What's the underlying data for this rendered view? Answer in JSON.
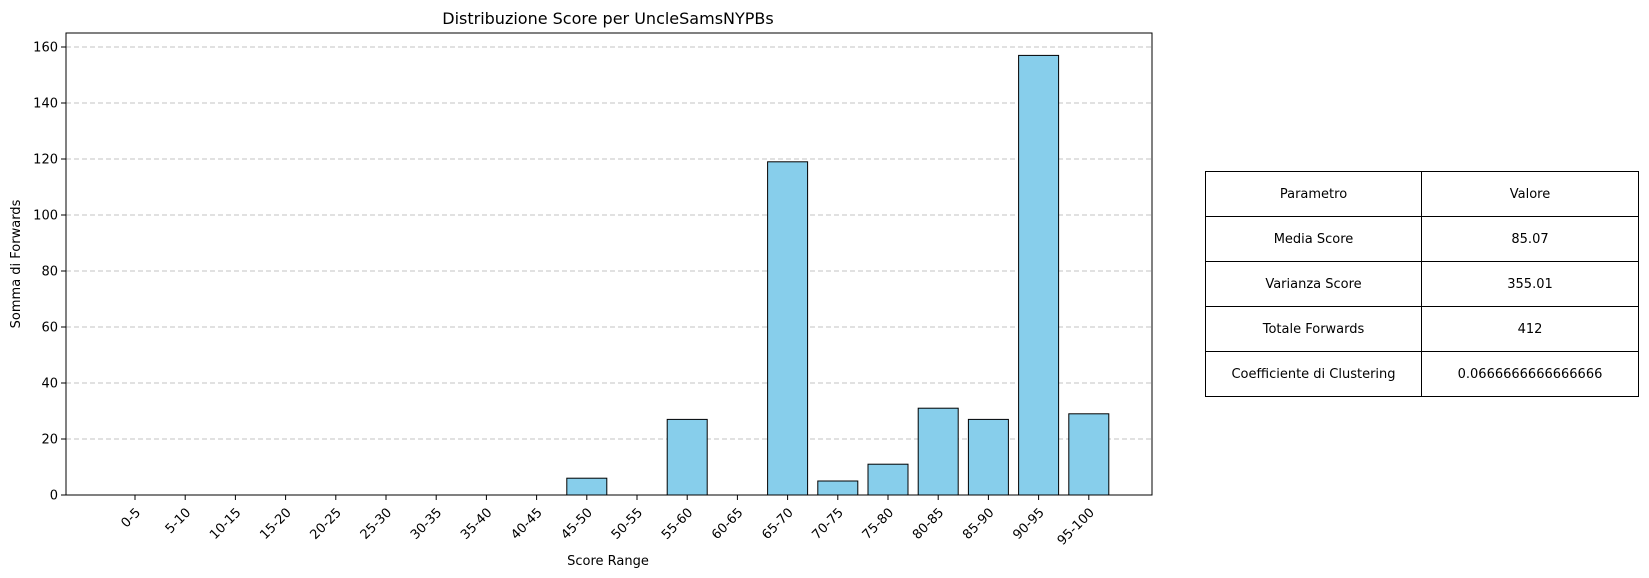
{
  "chart_data": {
    "type": "bar",
    "title": "Distribuzione Score per UncleSamsNYPBs",
    "xlabel": "Score Range",
    "ylabel": "Somma di Forwards",
    "categories": [
      "0-5",
      "5-10",
      "10-15",
      "15-20",
      "20-25",
      "25-30",
      "30-35",
      "35-40",
      "40-45",
      "45-50",
      "50-55",
      "55-60",
      "60-65",
      "65-70",
      "70-75",
      "75-80",
      "80-85",
      "85-90",
      "90-95",
      "95-100"
    ],
    "values": [
      0,
      0,
      0,
      0,
      0,
      0,
      0,
      0,
      0,
      6,
      0,
      27,
      0,
      119,
      5,
      11,
      31,
      27,
      157,
      29
    ],
    "ylim": [
      0,
      165
    ],
    "yticks": [
      0,
      20,
      40,
      60,
      80,
      100,
      120,
      140,
      160
    ],
    "grid": "y-dashed",
    "bar_color": "#87CEEB",
    "edge_color": "#000000",
    "x_tick_rotation": 45
  },
  "table": {
    "header": {
      "param": "Parametro",
      "value": "Valore"
    },
    "rows": [
      {
        "param": "Media Score",
        "value": "85.07"
      },
      {
        "param": "Varianza Score",
        "value": "355.01"
      },
      {
        "param": "Totale Forwards",
        "value": "412"
      },
      {
        "param": "Coefficiente di Clustering",
        "value": "0.0666666666666666"
      }
    ]
  }
}
